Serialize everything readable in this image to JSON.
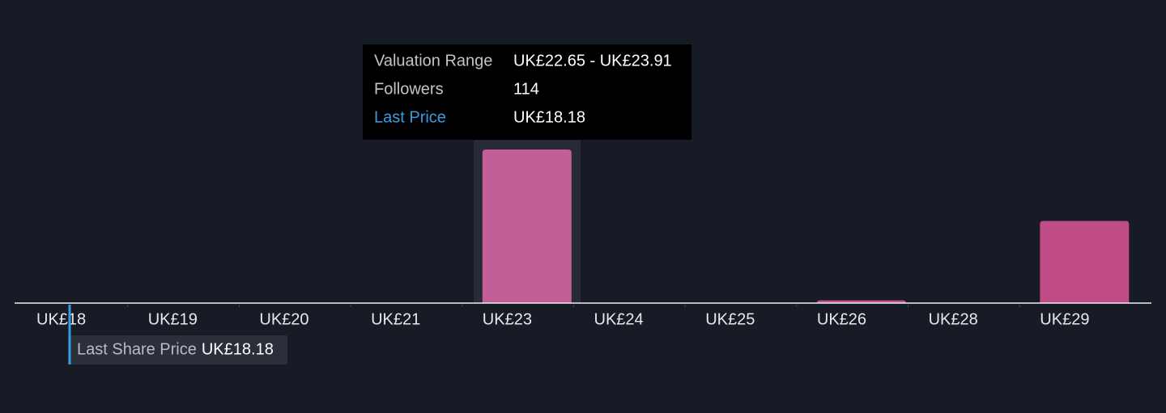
{
  "chart_data": {
    "type": "bar",
    "categories": [
      "UK£18",
      "UK£19",
      "UK£20",
      "UK£21",
      "UK£23",
      "UK£24",
      "UK£25",
      "UK£26",
      "UK£28",
      "UK£29"
    ],
    "values": [
      0,
      0,
      0,
      0,
      114,
      0,
      0,
      2,
      0,
      61
    ],
    "colors": [
      "#c45e98",
      "#c45e98",
      "#c45e98",
      "#c45e98",
      "#c45e98",
      "#c45e98",
      "#c45e98",
      "#c0538c",
      "#c0538c",
      "#bf4c87"
    ],
    "tooltip": {
      "rows": [
        {
          "label": "Valuation Range",
          "value": "UK£22.65 - UK£23.91"
        },
        {
          "label": "Followers",
          "value": "114"
        },
        {
          "label": "Last Price",
          "value": "UK£18.18"
        }
      ]
    },
    "last_share_price": {
      "label": "Last Share Price",
      "value": "UK£18.18"
    }
  }
}
